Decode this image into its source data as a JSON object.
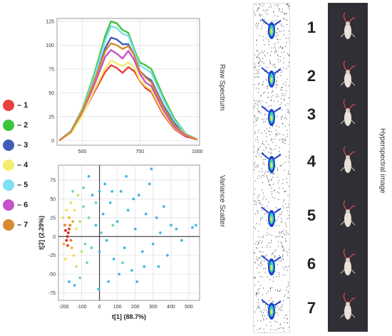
{
  "legend": [
    {
      "label": "– 1",
      "color": "#e8403c"
    },
    {
      "label": "– 2",
      "color": "#3cc43a"
    },
    {
      "label": "– 3",
      "color": "#3f5fb7"
    },
    {
      "label": "– 4",
      "color": "#f2ee6c"
    },
    {
      "label": "– 5",
      "color": "#7ce0f0"
    },
    {
      "label": "– 6",
      "color": "#c652c8"
    },
    {
      "label": "– 7",
      "color": "#d78a2e"
    }
  ],
  "side_labels": {
    "raw_spectrum": "Raw Spectrum",
    "variance_scatter": "Variance Scatter",
    "hyperspectral_image": "Hyperspectral image"
  },
  "sample_numbers": [
    "1",
    "2",
    "3",
    "4",
    "5",
    "6",
    "7"
  ],
  "chart_data": [
    {
      "type": "line",
      "title": "",
      "xlabel": "",
      "ylabel": "",
      "xlim": [
        390,
        1010
      ],
      "ylim": [
        -5,
        128
      ],
      "xticks": [
        500,
        750,
        1000
      ],
      "yticks": [
        0,
        25,
        50,
        75,
        100,
        125
      ],
      "grid": true,
      "x": [
        400,
        450,
        500,
        550,
        600,
        625,
        650,
        675,
        700,
        725,
        750,
        775,
        800,
        850,
        900,
        950,
        1000
      ],
      "series": [
        {
          "color": "#e8403c",
          "values": [
            0,
            8,
            27,
            50,
            72,
            79,
            76,
            71,
            77,
            73,
            63,
            55,
            51,
            28,
            12,
            4,
            1
          ]
        },
        {
          "color": "#3cc43a",
          "values": [
            0,
            10,
            33,
            68,
            110,
            125,
            123,
            116,
            113,
            96,
            82,
            79,
            75,
            47,
            23,
            7,
            1
          ]
        },
        {
          "color": "#3f5fb7",
          "values": [
            0,
            9,
            30,
            60,
            97,
            108,
            106,
            101,
            101,
            90,
            73,
            67,
            63,
            38,
            18,
            6,
            1
          ]
        },
        {
          "color": "#f2ee6c",
          "values": [
            0,
            8,
            26,
            52,
            76,
            84,
            81,
            78,
            82,
            77,
            64,
            57,
            53,
            30,
            13,
            5,
            1
          ]
        },
        {
          "color": "#7ce0f0",
          "values": [
            0,
            10,
            32,
            65,
            105,
            120,
            118,
            112,
            110,
            94,
            79,
            75,
            71,
            44,
            21,
            7,
            1
          ]
        },
        {
          "color": "#c652c8",
          "values": [
            0,
            9,
            30,
            57,
            88,
            95,
            91,
            86,
            94,
            85,
            70,
            61,
            57,
            33,
            14,
            5,
            1
          ]
        },
        {
          "color": "#d78a2e",
          "values": [
            0,
            9,
            31,
            61,
            94,
            102,
            100,
            96,
            99,
            90,
            73,
            66,
            61,
            36,
            16,
            6,
            1
          ]
        }
      ]
    },
    {
      "type": "scatter",
      "title": "",
      "xlabel": "t[1] (88.7%)",
      "ylabel": "t[2] (2.29%)",
      "xlim": [
        -230,
        560
      ],
      "ylim": [
        -85,
        95
      ],
      "xticks": [
        -200,
        -100,
        0,
        100,
        200,
        300,
        400,
        500
      ],
      "yticks": [
        -75,
        -50,
        -25,
        0,
        25,
        50,
        75
      ],
      "grid": true,
      "note": "density-colored point cloud; cluster of high density near (-180, 0)",
      "points": [
        [
          -180,
          0,
          "#d42020"
        ],
        [
          -175,
          5,
          "#d42020"
        ],
        [
          -185,
          -5,
          "#d42020"
        ],
        [
          -170,
          10,
          "#e8402a"
        ],
        [
          -190,
          8,
          "#d42020"
        ],
        [
          -178,
          -12,
          "#e8402a"
        ],
        [
          -165,
          15,
          "#f07a2a"
        ],
        [
          -160,
          -5,
          "#f07a2a"
        ],
        [
          -195,
          15,
          "#f07a2a"
        ],
        [
          -170,
          25,
          "#f3b030"
        ],
        [
          -150,
          20,
          "#f3b030"
        ],
        [
          -155,
          -15,
          "#f3b030"
        ],
        [
          -200,
          -10,
          "#f3b030"
        ],
        [
          -140,
          35,
          "#f3e060"
        ],
        [
          -130,
          10,
          "#f3e060"
        ],
        [
          -145,
          -25,
          "#f3e060"
        ],
        [
          -185,
          35,
          "#f3e060"
        ],
        [
          -160,
          45,
          "#f3e060"
        ],
        [
          -120,
          55,
          "#b8e870"
        ],
        [
          -110,
          20,
          "#b8e870"
        ],
        [
          -100,
          -20,
          "#b8e870"
        ],
        [
          -130,
          -40,
          "#b8e870"
        ],
        [
          -190,
          -30,
          "#f3e060"
        ],
        [
          -205,
          25,
          "#f3e060"
        ],
        [
          -150,
          60,
          "#7ad8a8"
        ],
        [
          -90,
          40,
          "#7ad8a8"
        ],
        [
          -80,
          -10,
          "#7ad8a8"
        ],
        [
          -60,
          25,
          "#7ad8a8"
        ],
        [
          -70,
          -35,
          "#7ad8a8"
        ],
        [
          -110,
          -55,
          "#7ad8a8"
        ],
        [
          -40,
          55,
          "#3fb8e6"
        ],
        [
          -20,
          15,
          "#3fb8e6"
        ],
        [
          0,
          -20,
          "#3fb8e6"
        ],
        [
          20,
          30,
          "#3fb8e6"
        ],
        [
          40,
          -5,
          "#3fb8e6"
        ],
        [
          60,
          45,
          "#3fb8e6"
        ],
        [
          80,
          -30,
          "#3fb8e6"
        ],
        [
          100,
          20,
          "#3fb8e6"
        ],
        [
          120,
          60,
          "#3fb8e6"
        ],
        [
          140,
          -15,
          "#3fb8e6"
        ],
        [
          160,
          35,
          "#3fb8e6"
        ],
        [
          180,
          -45,
          "#3fb8e6"
        ],
        [
          200,
          10,
          "#3fb8e6"
        ],
        [
          220,
          55,
          "#3fb8e6"
        ],
        [
          240,
          -20,
          "#3fb8e6"
        ],
        [
          260,
          30,
          "#3fb8e6"
        ],
        [
          280,
          70,
          "#3fb8e6"
        ],
        [
          300,
          -10,
          "#3fb8e6"
        ],
        [
          320,
          25,
          "#3fb8e6"
        ],
        [
          340,
          5,
          "#3fb8e6"
        ],
        [
          360,
          40,
          "#3fb8e6"
        ],
        [
          380,
          -25,
          "#3fb8e6"
        ],
        [
          400,
          15,
          "#3fb8e6"
        ],
        [
          430,
          10,
          "#3fb8e6"
        ],
        [
          460,
          -5,
          "#3fb8e6"
        ],
        [
          520,
          12,
          "#3fb8e6"
        ],
        [
          540,
          15,
          "#3fb8e6"
        ],
        [
          290,
          90,
          "#3fb8e6"
        ],
        [
          150,
          80,
          "#3fb8e6"
        ],
        [
          -5,
          -70,
          "#3fb8e6"
        ],
        [
          -140,
          -65,
          "#3fb8e6"
        ],
        [
          50,
          -60,
          "#3fb8e6"
        ],
        [
          110,
          -50,
          "#3fb8e6"
        ],
        [
          30,
          70,
          "#3fb8e6"
        ],
        [
          -60,
          80,
          "#3fb8e6"
        ],
        [
          250,
          -40,
          "#3fb8e6"
        ],
        [
          -20,
          45,
          "#6dd0c0"
        ],
        [
          10,
          5,
          "#6dd0c0"
        ],
        [
          -45,
          -15,
          "#6dd0c0"
        ],
        [
          75,
          15,
          "#6dd0c0"
        ],
        [
          130,
          -35,
          "#6dd0c0"
        ],
        [
          -90,
          65,
          "#6dd0c0"
        ],
        [
          190,
          50,
          "#3fb8e6"
        ],
        [
          330,
          -40,
          "#3fb8e6"
        ],
        [
          210,
          -60,
          "#3fb8e6"
        ],
        [
          70,
          60,
          "#3fb8e6"
        ],
        [
          -170,
          -60,
          "#3fb8e6"
        ],
        [
          0,
          60,
          "#3fb8e6"
        ]
      ]
    }
  ]
}
